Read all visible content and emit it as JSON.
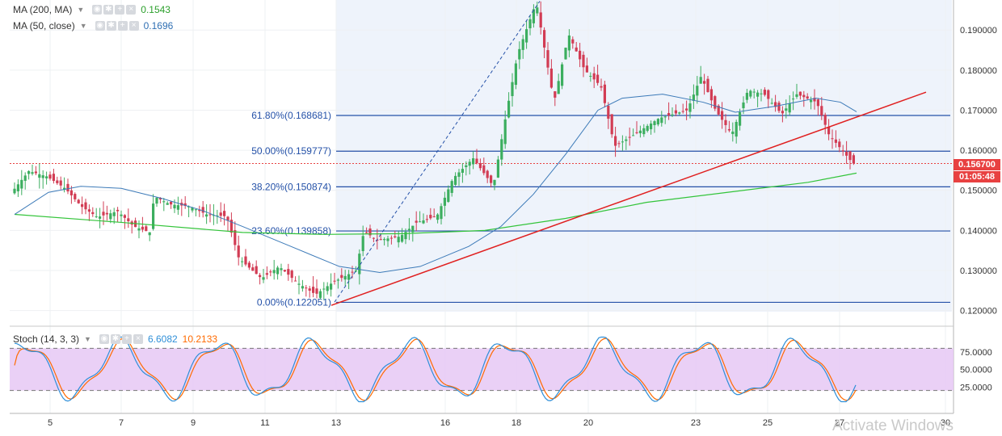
{
  "legend": {
    "ma200": {
      "label": "MA (200, MA)",
      "value": "0.1543",
      "color": "#2ca02c"
    },
    "ma50": {
      "label": "MA (50, close)",
      "value": "0.1696",
      "color": "#2f6fb3"
    },
    "stoch": {
      "label": "Stoch (14, 3, 3)",
      "k_value": "6.6082",
      "d_value": "10.2133",
      "k_color": "#2f8fd8",
      "d_color": "#ff6a00"
    }
  },
  "price_axis": {
    "ticks": [
      "0.190000",
      "0.180000",
      "0.170000",
      "0.160000",
      "0.150000",
      "0.140000",
      "0.130000",
      "0.120000"
    ],
    "current_price": "0.156700",
    "countdown": "01:05:48"
  },
  "stoch_axis": {
    "ticks": [
      "75.0000",
      "50.0000",
      "25.0000"
    ]
  },
  "time_axis": {
    "ticks": [
      "5",
      "7",
      "9",
      "11",
      "13",
      "16",
      "18",
      "20",
      "23",
      "25",
      "27",
      "30"
    ]
  },
  "watermark": "Activate Windows",
  "chart_data": {
    "type": "candlestick",
    "y_range": [
      0.1165,
      0.1975
    ],
    "fibonacci_levels": [
      {
        "label": "61.80%(0.168681)",
        "value": 0.168681
      },
      {
        "label": "50.00%(0.159777)",
        "value": 0.159777
      },
      {
        "label": "38.20%(0.150874)",
        "value": 0.150874
      },
      {
        "label": "23.60%(0.139858)",
        "value": 0.139858
      },
      {
        "label": "0.00%(0.122051)",
        "value": 0.122051
      }
    ],
    "current_price": 0.1567,
    "ma200_last": 0.1543,
    "ma50_last": 0.1696,
    "stoch_k_last": 6.6082,
    "stoch_d_last": 10.2133,
    "stoch_levels": [
      80,
      20
    ],
    "colors": {
      "up": "#3cae5f",
      "down": "#d23c54",
      "fib": "#2451a8",
      "trend": "#e02020",
      "stoch_band": "#e6c8f5"
    }
  }
}
